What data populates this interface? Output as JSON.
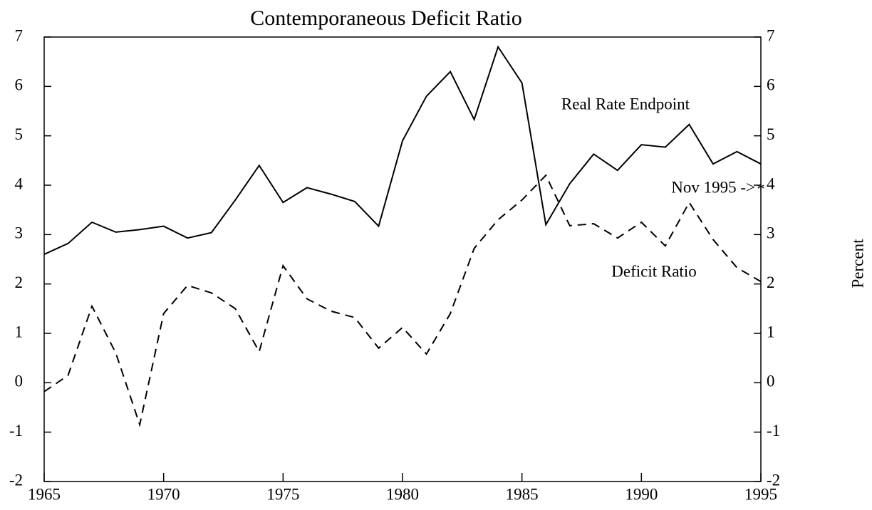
{
  "chart_data": {
    "type": "line",
    "title": "Contemporaneous Deficit Ratio",
    "x": [
      1965,
      1966,
      1967,
      1968,
      1969,
      1970,
      1971,
      1972,
      1973,
      1974,
      1975,
      1976,
      1977,
      1978,
      1979,
      1980,
      1981,
      1982,
      1983,
      1984,
      1985,
      1986,
      1987,
      1988,
      1989,
      1990,
      1991,
      1992,
      1993,
      1994,
      1995
    ],
    "series": [
      {
        "name": "Real Rate Endpoint",
        "color": "#000000",
        "dash": "solid",
        "values": [
          2.6,
          2.82,
          3.25,
          3.05,
          3.1,
          3.17,
          2.93,
          3.04,
          3.7,
          4.4,
          3.65,
          3.95,
          3.82,
          3.67,
          3.17,
          4.9,
          5.8,
          6.3,
          5.33,
          6.8,
          6.07,
          3.2,
          4.03,
          4.63,
          4.3,
          4.82,
          4.77,
          5.23,
          4.43,
          4.68,
          4.43
        ]
      },
      {
        "name": "Deficit Ratio",
        "color": "#000000",
        "dash": "dashed",
        "values": [
          -0.18,
          0.15,
          1.55,
          0.6,
          -0.85,
          1.4,
          1.97,
          1.82,
          1.5,
          0.63,
          2.37,
          1.7,
          1.45,
          1.32,
          0.7,
          1.12,
          0.58,
          1.4,
          2.72,
          3.3,
          3.7,
          4.2,
          3.18,
          3.22,
          2.93,
          3.25,
          2.77,
          3.65,
          2.9,
          2.33,
          2.05
        ]
      }
    ],
    "xlim": [
      1965,
      1995
    ],
    "xticks": [
      1965,
      1970,
      1975,
      1980,
      1985,
      1990,
      1995
    ],
    "ylim": [
      -2,
      7
    ],
    "yticks": [
      -2,
      -1,
      0,
      1,
      2,
      3,
      4,
      5,
      6,
      7
    ],
    "y2lim": [
      -2,
      7
    ],
    "y2ticks": [
      -2,
      -1,
      0,
      1,
      2,
      3,
      4,
      5,
      6,
      7
    ],
    "y2label": "Percent",
    "annotations": [
      {
        "text": "Nov 1995 ->",
        "marker": {
          "x": 1995,
          "y": 3.95
        }
      }
    ]
  }
}
